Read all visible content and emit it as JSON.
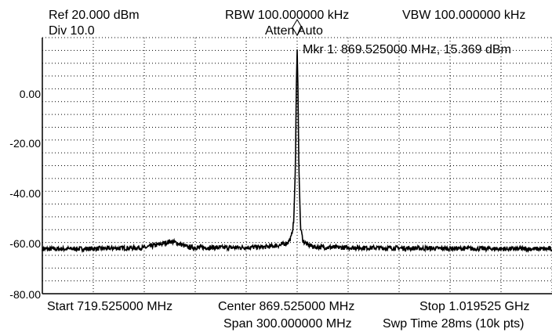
{
  "header": {
    "ref": "Ref 20.000 dBm",
    "div": "Div 10.0",
    "rbw": "RBW 100.000000 kHz",
    "atten": "Atten Auto",
    "vbw": "VBW 100.000000 kHz"
  },
  "marker": {
    "label": "Mkr 1: 869.525000 MHz, 15.369 dBm",
    "frequency_mhz": 869.525,
    "level_dbm": 15.369
  },
  "footer": {
    "start": "Start 719.525000 MHz",
    "center": "Center 869.525000 MHz",
    "stop": "Stop 1.019525 GHz",
    "span": "Span 300.000000 MHz",
    "sweep": "Swp Time 28ms (10k pts)"
  },
  "y_axis_labels": [
    "0.00",
    "-20.00",
    "-40.00",
    "-60.00",
    "-80.00"
  ],
  "colors": {
    "trace": "#000000",
    "grid": "#000000",
    "background": "#ffffff"
  },
  "chart_data": {
    "type": "line",
    "x_start_mhz": 719.525,
    "x_stop_mhz": 1019.525,
    "ylim": [
      -80,
      20
    ],
    "y_ticks": [
      0,
      -20,
      -40,
      -60,
      -80
    ],
    "grid": true,
    "series": [
      {
        "x": [
          719.525,
          740,
          760,
          780,
          790,
          795,
          800,
          805,
          810,
          830,
          850,
          860,
          864,
          866,
          867.5,
          868.5,
          869.0,
          869.525,
          870.0,
          870.5,
          871.5,
          873,
          876,
          880,
          900,
          950,
          1000,
          1019.525
        ],
        "y": [
          -62.5,
          -62.5,
          -62.3,
          -62.0,
          -60.5,
          -59.5,
          -60.5,
          -61.8,
          -62.0,
          -62.0,
          -61.8,
          -61.0,
          -60.0,
          -58.0,
          -52.0,
          -30.0,
          0.0,
          15.369,
          0.0,
          -30.0,
          -54.0,
          -59.5,
          -61.0,
          -61.8,
          -62.0,
          -62.3,
          -62.5,
          -62.5
        ]
      }
    ]
  }
}
